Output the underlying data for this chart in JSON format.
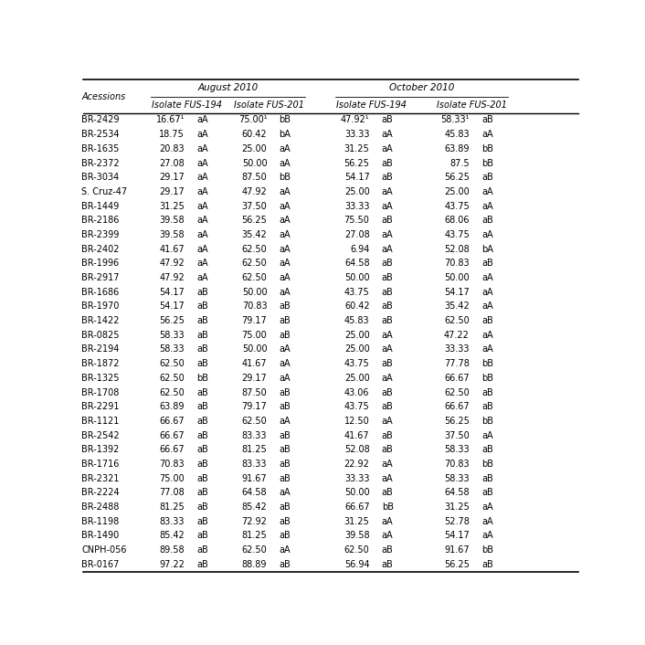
{
  "title_row1": "August 2010",
  "title_row2": "October 2010",
  "sub_col1": "Isolate FUS-194",
  "sub_col2": "Isolate FUS-201",
  "sub_col3": "Isolate FUS-194",
  "sub_col4": "Isolate FUS-201",
  "col_header": "Acessions",
  "rows": [
    [
      "BR-2429",
      "16.67¹",
      "aA",
      "75.00¹",
      "bB",
      "47.92¹",
      "aB",
      "58.33¹",
      "aB"
    ],
    [
      "BR-2534",
      "18.75",
      "aA",
      "60.42",
      "bA",
      "33.33",
      "aA",
      "45.83",
      "aA"
    ],
    [
      "BR-1635",
      "20.83",
      "aA",
      "25.00",
      "aA",
      "31.25",
      "aA",
      "63.89",
      "bB"
    ],
    [
      "BR-2372",
      "27.08",
      "aA",
      "50.00",
      "aA",
      "56.25",
      "aB",
      "87.5",
      "bB"
    ],
    [
      "BR-3034",
      "29.17",
      "aA",
      "87.50",
      "bB",
      "54.17",
      "aB",
      "56.25",
      "aB"
    ],
    [
      "S. Cruz-47",
      "29.17",
      "aA",
      "47.92",
      "aA",
      "25.00",
      "aA",
      "25.00",
      "aA"
    ],
    [
      "BR-1449",
      "31.25",
      "aA",
      "37.50",
      "aA",
      "33.33",
      "aA",
      "43.75",
      "aA"
    ],
    [
      "BR-2186",
      "39.58",
      "aA",
      "56.25",
      "aA",
      "75.50",
      "aB",
      "68.06",
      "aB"
    ],
    [
      "BR-2399",
      "39.58",
      "aA",
      "35.42",
      "aA",
      "27.08",
      "aA",
      "43.75",
      "aA"
    ],
    [
      "BR-2402",
      "41.67",
      "aA",
      "62.50",
      "aA",
      "6.94",
      "aA",
      "52.08",
      "bA"
    ],
    [
      "BR-1996",
      "47.92",
      "aA",
      "62.50",
      "aA",
      "64.58",
      "aB",
      "70.83",
      "aB"
    ],
    [
      "BR-2917",
      "47.92",
      "aA",
      "62.50",
      "aA",
      "50.00",
      "aB",
      "50.00",
      "aA"
    ],
    [
      "BR-1686",
      "54.17",
      "aB",
      "50.00",
      "aA",
      "43.75",
      "aB",
      "54.17",
      "aA"
    ],
    [
      "BR-1970",
      "54.17",
      "aB",
      "70.83",
      "aB",
      "60.42",
      "aB",
      "35.42",
      "aA"
    ],
    [
      "BR-1422",
      "56.25",
      "aB",
      "79.17",
      "aB",
      "45.83",
      "aB",
      "62.50",
      "aB"
    ],
    [
      "BR-0825",
      "58.33",
      "aB",
      "75.00",
      "aB",
      "25.00",
      "aA",
      "47.22",
      "aA"
    ],
    [
      "BR-2194",
      "58.33",
      "aB",
      "50.00",
      "aA",
      "25.00",
      "aA",
      "33.33",
      "aA"
    ],
    [
      "BR-1872",
      "62.50",
      "aB",
      "41.67",
      "aA",
      "43.75",
      "aB",
      "77.78",
      "bB"
    ],
    [
      "BR-1325",
      "62.50",
      "bB",
      "29.17",
      "aA",
      "25.00",
      "aA",
      "66.67",
      "bB"
    ],
    [
      "BR-1708",
      "62.50",
      "aB",
      "87.50",
      "aB",
      "43.06",
      "aB",
      "62.50",
      "aB"
    ],
    [
      "BR-2291",
      "63.89",
      "aB",
      "79.17",
      "aB",
      "43.75",
      "aB",
      "66.67",
      "aB"
    ],
    [
      "BR-1121",
      "66.67",
      "aB",
      "62.50",
      "aA",
      "12.50",
      "aA",
      "56.25",
      "bB"
    ],
    [
      "BR-2542",
      "66.67",
      "aB",
      "83.33",
      "aB",
      "41.67",
      "aB",
      "37.50",
      "aA"
    ],
    [
      "BR-1392",
      "66.67",
      "aB",
      "81.25",
      "aB",
      "52.08",
      "aB",
      "58.33",
      "aB"
    ],
    [
      "BR-1716",
      "70.83",
      "aB",
      "83.33",
      "aB",
      "22.92",
      "aA",
      "70.83",
      "bB"
    ],
    [
      "BR-2321",
      "75.00",
      "aB",
      "91.67",
      "aB",
      "33.33",
      "aA",
      "58.33",
      "aB"
    ],
    [
      "BR-2224",
      "77.08",
      "aB",
      "64.58",
      "aA",
      "50.00",
      "aB",
      "64.58",
      "aB"
    ],
    [
      "BR-2488",
      "81.25",
      "aB",
      "85.42",
      "aB",
      "66.67",
      "bB",
      "31.25",
      "aA"
    ],
    [
      "BR-1198",
      "83.33",
      "aB",
      "72.92",
      "aB",
      "31.25",
      "aA",
      "52.78",
      "aA"
    ],
    [
      "BR-1490",
      "85.42",
      "aB",
      "81.25",
      "aB",
      "39.58",
      "aA",
      "54.17",
      "aA"
    ],
    [
      "CNPH-056",
      "89.58",
      "aB",
      "62.50",
      "aA",
      "62.50",
      "aB",
      "91.67",
      "bB"
    ],
    [
      "BR-0167",
      "97.22",
      "aB",
      "88.89",
      "aB",
      "56.94",
      "aB",
      "56.25",
      "aB"
    ]
  ],
  "bg_color": "#ffffff",
  "text_color": "#000000",
  "font_size": 7.0,
  "header_font_size": 7.5
}
